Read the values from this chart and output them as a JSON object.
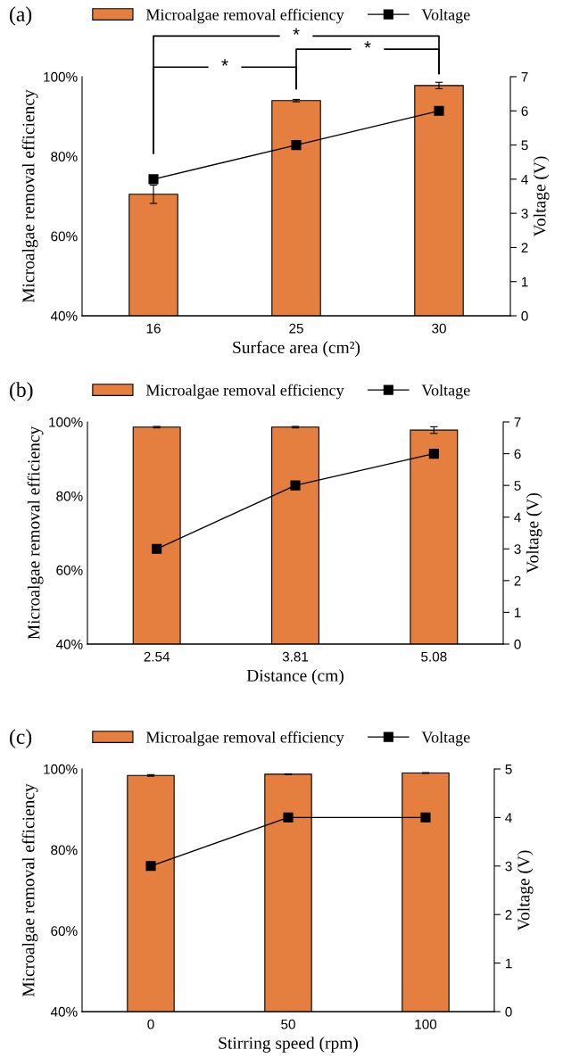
{
  "chart_data": [
    {
      "type": "bar",
      "title": "(a)",
      "categories": [
        "16",
        "25",
        "30"
      ],
      "xlabel": "Surface area (cm²)",
      "ylabel": "Microalgae removal efficiency",
      "y2label": "Voltage (V)",
      "series": [
        {
          "name": "Microalgae removal efficiency",
          "color": "#e57f3f",
          "values": [
            70.5,
            94.0,
            97.8
          ],
          "errors": [
            2.3,
            0.3,
            0.8
          ]
        },
        {
          "name": "Voltage",
          "type": "line",
          "axis": "y2",
          "color": "#000000",
          "values": [
            4,
            5,
            6
          ]
        }
      ],
      "ylim": [
        40,
        100
      ],
      "yticks": [
        {
          "value": 40,
          "label": "40%"
        },
        {
          "value": 60,
          "label": "60%"
        },
        {
          "value": 80,
          "label": "80%"
        },
        {
          "value": 100,
          "label": "100%"
        }
      ],
      "y2lim": [
        0,
        7
      ],
      "y2ticks": [
        0,
        1,
        2,
        3,
        4,
        5,
        6,
        7
      ],
      "legend": "top",
      "marker": "square",
      "grid": false,
      "annotations": [
        "*",
        "*",
        "*"
      ]
    },
    {
      "type": "bar",
      "title": "(b)",
      "categories": [
        "2.54",
        "3.81",
        "5.08"
      ],
      "xlabel": "Distance (cm)",
      "ylabel": "Microalgae removal efficiency",
      "y2label": "Voltage (V)",
      "series": [
        {
          "name": "Microalgae removal efficiency",
          "color": "#e57f3f",
          "values": [
            98.6,
            98.6,
            97.8
          ],
          "errors": [
            0.2,
            0.2,
            0.9
          ]
        },
        {
          "name": "Voltage",
          "type": "line",
          "axis": "y2",
          "color": "#000000",
          "values": [
            3,
            5,
            6
          ]
        }
      ],
      "ylim": [
        40,
        100
      ],
      "yticks": [
        {
          "value": 40,
          "label": "40%"
        },
        {
          "value": 60,
          "label": "60%"
        },
        {
          "value": 80,
          "label": "80%"
        },
        {
          "value": 100,
          "label": "100%"
        }
      ],
      "y2lim": [
        0,
        7
      ],
      "y2ticks": [
        0,
        1,
        2,
        3,
        4,
        5,
        6,
        7
      ],
      "legend": "top",
      "marker": "square",
      "grid": false
    },
    {
      "type": "bar",
      "title": "(c)",
      "categories": [
        "0",
        "50",
        "100"
      ],
      "xlabel": "Stirring speed (rpm)",
      "ylabel": "Microalgae removal efficiency",
      "y2label": "Voltage (V)",
      "series": [
        {
          "name": "Microalgae removal efficiency",
          "color": "#e57f3f",
          "values": [
            98.4,
            98.7,
            99.0
          ],
          "errors": [
            0.2,
            0.1,
            0.1
          ]
        },
        {
          "name": "Voltage",
          "type": "line",
          "axis": "y2",
          "color": "#000000",
          "values": [
            3,
            4,
            4
          ]
        }
      ],
      "ylim": [
        40,
        100
      ],
      "yticks": [
        {
          "value": 40,
          "label": "40%"
        },
        {
          "value": 60,
          "label": "60%"
        },
        {
          "value": 80,
          "label": "80%"
        },
        {
          "value": 100,
          "label": "100%"
        }
      ],
      "y2lim": [
        0,
        5
      ],
      "y2ticks": [
        0,
        1,
        2,
        3,
        4,
        5
      ],
      "legend": "top",
      "marker": "square",
      "grid": false
    }
  ]
}
